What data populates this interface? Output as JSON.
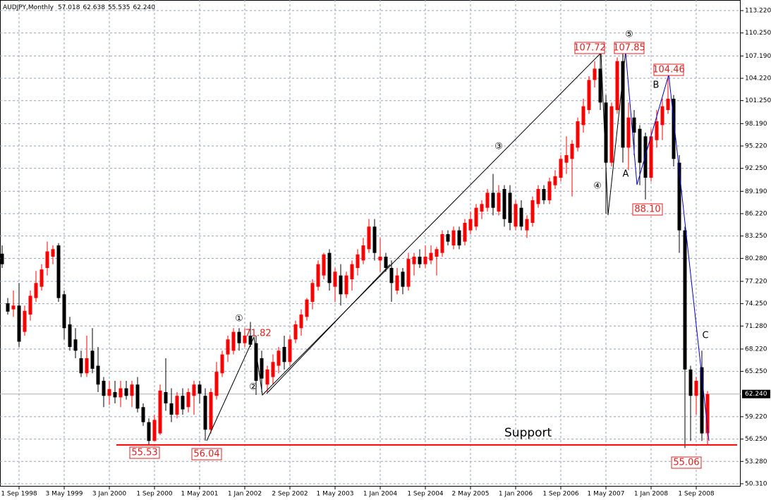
{
  "chart_data": {
    "type": "candlestick",
    "title": "AUDJPY,Monthly",
    "ohlc_labels": [
      "57.018",
      "62.638",
      "55.535",
      "62.240"
    ],
    "categories": [
      null,
      null,
      null,
      "1 Sep 1998",
      null,
      null,
      null,
      null,
      null,
      null,
      null,
      "3 May 1999",
      null,
      null,
      null,
      null,
      null,
      null,
      null,
      "3 Jan 2000",
      null,
      null,
      null,
      null,
      null,
      null,
      null,
      "1 Sep 2000",
      null,
      null,
      null,
      null,
      null,
      null,
      null,
      "1 May 2001",
      null,
      null,
      null,
      null,
      null,
      null,
      null,
      "1 Jan 2002",
      null,
      null,
      null,
      null,
      null,
      null,
      null,
      "2 Sep 2002",
      null,
      null,
      null,
      null,
      null,
      null,
      null,
      "1 May 2003",
      null,
      null,
      null,
      null,
      null,
      null,
      null,
      "1 Jan 2004",
      null,
      null,
      null,
      null,
      null,
      null,
      null,
      "1 Sep 2004",
      null,
      null,
      null,
      null,
      null,
      null,
      null,
      "2 May 2005",
      null,
      null,
      null,
      null,
      null,
      null,
      null,
      "1 Jan 2006",
      null,
      null,
      null,
      null,
      null,
      null,
      null,
      "1 Sep 2006",
      null,
      null,
      null,
      null,
      null,
      null,
      null,
      "1 May 2007",
      null,
      null,
      null,
      null,
      null,
      null,
      null,
      "1 Jan 2008",
      null,
      null,
      null,
      null,
      null,
      null,
      null,
      "1 Sep 2008",
      null,
      null
    ],
    "open": [
      80.9,
      74.3,
      73.5,
      74,
      70.5,
      72.8,
      75,
      76.5,
      79,
      80.5,
      82,
      75.5,
      71.5,
      69.5,
      67,
      65,
      68,
      66,
      64,
      62,
      62.5,
      61.8,
      63,
      62,
      63.5,
      60.5,
      58.5,
      56,
      57,
      62.5,
      61,
      59.5,
      62,
      60.5,
      62,
      63.5,
      62,
      57.5,
      62,
      65,
      67.5,
      68,
      70.5,
      69,
      70,
      69,
      67,
      63.5,
      64.5,
      66,
      68.5,
      66.5,
      69.5,
      71,
      72.5,
      74.5,
      76.5,
      78,
      81,
      76.5,
      78,
      75.5,
      77.5,
      79,
      80,
      81.5,
      84.5,
      80,
      80.5,
      79,
      76,
      78.5,
      76.5,
      79.5,
      80.5,
      79.5,
      80,
      80.5,
      81,
      83.5,
      82,
      84,
      82.5,
      84,
      84.5,
      86.5,
      87,
      89,
      86.5,
      89.5,
      89,
      84.5,
      87,
      84,
      85,
      87.5,
      89.5,
      88,
      90,
      91,
      93,
      93.5,
      95,
      98,
      100,
      104,
      105.5,
      101,
      93,
      100,
      106.5,
      95,
      99,
      97.5,
      96.5,
      91,
      96,
      98,
      100,
      101.5,
      93,
      84,
      65.5,
      62,
      65.8,
      57.018
    ],
    "high": [
      82,
      75,
      76,
      77,
      74,
      76,
      78.6,
      79.5,
      82.5,
      82,
      82.3,
      76,
      72.5,
      71,
      68,
      70,
      71,
      68.5,
      64.5,
      64,
      64,
      64,
      64,
      64,
      64.5,
      61,
      59,
      59.5,
      63.5,
      67,
      63,
      62.5,
      63,
      63,
      64,
      64,
      63,
      63,
      66.5,
      68,
      70,
      71,
      71,
      71,
      71.82,
      70,
      68,
      66,
      67.5,
      68.5,
      70,
      70,
      72,
      73.5,
      75,
      77.5,
      80,
      81,
      81.5,
      79,
      79.5,
      78.5,
      80,
      81.5,
      83,
      85.5,
      85.5,
      83,
      81,
      80,
      79,
      79,
      81,
      81,
      81.5,
      82,
      82,
      81.8,
      84,
      84,
      84.5,
      84.5,
      85.5,
      86.5,
      87.5,
      88,
      89.5,
      91.5,
      90,
      90,
      90,
      88,
      88,
      86,
      88.5,
      90,
      90,
      91,
      92,
      94,
      96.5,
      96,
      99,
      101.5,
      104.5,
      106.5,
      107.72,
      102,
      101,
      107,
      107.85,
      101,
      100,
      98,
      97,
      97.5,
      100,
      101.5,
      104.46,
      102,
      94,
      84.5,
      66,
      64.5,
      68,
      62.638
    ],
    "low": [
      79,
      72.8,
      72.5,
      68.5,
      70,
      72,
      74.5,
      76,
      78,
      79.5,
      74.5,
      69.5,
      68,
      67,
      64.5,
      64.5,
      65,
      62.5,
      60.5,
      60.8,
      61,
      60.5,
      61.5,
      60.5,
      59.8,
      58,
      55.53,
      56,
      56.8,
      60,
      58.5,
      59,
      59.5,
      59.8,
      59.5,
      61,
      56.04,
      57,
      61.5,
      64.5,
      66.5,
      67.5,
      68,
      68.5,
      68.5,
      62.12,
      62.5,
      62.5,
      63.5,
      65,
      65.5,
      66,
      69,
      70,
      72,
      73.5,
      76,
      77.5,
      76,
      74.5,
      74,
      75,
      76,
      78,
      79.5,
      81,
      80,
      78.5,
      78.5,
      74.5,
      75.5,
      75.5,
      76,
      78,
      79,
      79,
      79.5,
      78,
      80.5,
      82,
      81.5,
      81.5,
      82,
      83.5,
      84,
      85.5,
      86.5,
      86,
      86,
      84.5,
      84,
      84,
      84,
      83,
      84.5,
      87,
      87.5,
      87.5,
      89.5,
      90.5,
      91.5,
      88.5,
      94.5,
      97,
      99.5,
      103,
      100,
      86.22,
      92.5,
      99.5,
      93,
      92,
      94,
      90,
      88.1,
      90.5,
      95,
      96,
      99.5,
      92.5,
      81,
      55.06,
      56,
      59.5,
      56,
      55.535
    ],
    "close": [
      79.5,
      73.2,
      74,
      69.2,
      73.3,
      75.3,
      77,
      78.8,
      81.2,
      81.5,
      75,
      71,
      68.5,
      68,
      65,
      67,
      65.6,
      63.5,
      62,
      62.9,
      61.8,
      63,
      62,
      63.5,
      60.3,
      58.5,
      56,
      58.8,
      62.7,
      61,
      59.5,
      62,
      60.2,
      62.5,
      63.5,
      62.3,
      57.5,
      62.5,
      65.2,
      67.5,
      69.5,
      70.5,
      69,
      70,
      68.8,
      64,
      64.3,
      65.5,
      66.5,
      68,
      66.5,
      69.5,
      71.5,
      72.8,
      74.8,
      77,
      79.5,
      80.8,
      77,
      78.5,
      75.5,
      78,
      79.5,
      80.8,
      82,
      84.5,
      81,
      80.5,
      79,
      77,
      78,
      76.5,
      80.2,
      80.5,
      79.5,
      80.5,
      81,
      81.5,
      83.5,
      82.5,
      84,
      82,
      85,
      85.5,
      87,
      87.5,
      89,
      87,
      89,
      85.5,
      85,
      87.5,
      84.5,
      85.5,
      88,
      89.5,
      88,
      90.5,
      91.2,
      93.5,
      94,
      95.5,
      98.5,
      100.5,
      104,
      105.5,
      101,
      93,
      100.5,
      106.5,
      95,
      99,
      97,
      93,
      91,
      96.5,
      98.5,
      100.5,
      101.5,
      93.5,
      84,
      65.5,
      62,
      64,
      57,
      62.24
    ],
    "up_color": "#ff0000",
    "down_color": "#000000",
    "ylim": [
      49.93,
      114.63
    ],
    "yticks": [
      {
        "value": 113.22,
        "label": "113.220"
      },
      {
        "value": 110.25,
        "label": "110.250"
      },
      {
        "value": 107.19,
        "label": "107.190"
      },
      {
        "value": 104.22,
        "label": "104.220"
      },
      {
        "value": 101.25,
        "label": "101.250"
      },
      {
        "value": 98.19,
        "label": "98.190"
      },
      {
        "value": 95.22,
        "label": "95.220"
      },
      {
        "value": 92.25,
        "label": "92.250"
      },
      {
        "value": 89.19,
        "label": "89.190"
      },
      {
        "value": 86.22,
        "label": "86.220"
      },
      {
        "value": 83.25,
        "label": "83.250"
      },
      {
        "value": 80.28,
        "label": "80.280"
      },
      {
        "value": 77.22,
        "label": "77.220"
      },
      {
        "value": 74.25,
        "label": "74.250"
      },
      {
        "value": 71.28,
        "label": "71.280"
      },
      {
        "value": 68.22,
        "label": "68.220"
      },
      {
        "value": 65.25,
        "label": "65.250"
      },
      {
        "value": 59.22,
        "label": "59.220"
      },
      {
        "value": 56.25,
        "label": "56.250"
      },
      {
        "value": 53.28,
        "label": "53.280"
      },
      {
        "value": 50.31,
        "label": "50.310"
      }
    ],
    "current_price": {
      "value": 62.24,
      "label": "62.240"
    },
    "grid": true,
    "support": {
      "label": "Support",
      "value": 55.47,
      "color": "#ff0000"
    },
    "price_labels": [
      "55.53",
      "56.04",
      "71.82",
      "107.72",
      "107.85",
      "104.46",
      "88.10",
      "55.06"
    ],
    "wave_labels": [
      "①",
      "②",
      "③",
      "④",
      "⑤",
      "A",
      "B",
      "C"
    ]
  }
}
